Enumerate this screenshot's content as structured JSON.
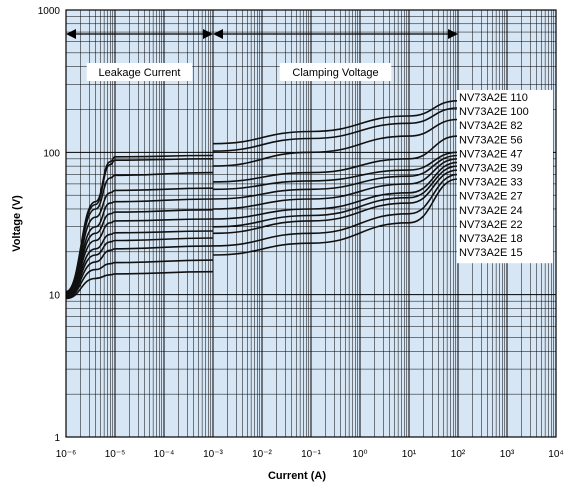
{
  "chart_data": {
    "type": "line",
    "title": "",
    "xlabel": "Current (A)",
    "ylabel": "Voltage (V)",
    "x_scale": "log",
    "y_scale": "log",
    "xlim": [
      1e-06,
      10000
    ],
    "ylim": [
      1,
      1000
    ],
    "x_tick_labels": [
      "10⁻⁶",
      "10⁻⁵",
      "10⁻⁴",
      "10⁻³",
      "10⁻²",
      "10⁻¹",
      "10⁰",
      "10¹",
      "10²",
      "10³",
      "10⁴"
    ],
    "y_tick_labels": [
      "1",
      "10",
      "100",
      "1000"
    ],
    "grid": true,
    "legend_position": "right",
    "regions": [
      {
        "label": "Leakage Current",
        "x_from": 1e-06,
        "x_to": 0.001
      },
      {
        "label": "Clamping Voltage",
        "x_from": 0.001,
        "x_to": 100
      }
    ],
    "series": [
      {
        "name": "NV73A2E 110",
        "leakage": {
          "x": [
            1e-06,
            4e-06,
            8e-06,
            1e-05,
            0.001
          ],
          "y": [
            10.5,
            45,
            86,
            93,
            95
          ]
        },
        "clamp": {
          "x": [
            0.001,
            0.1,
            10,
            100
          ],
          "y": [
            115,
            140,
            180,
            230
          ]
        }
      },
      {
        "name": "NV73A2E 100",
        "leakage": {
          "x": [
            1e-06,
            4e-06,
            8e-06,
            1e-05,
            0.001
          ],
          "y": [
            10.5,
            43,
            82,
            88,
            90
          ]
        },
        "clamp": {
          "x": [
            0.001,
            0.1,
            10,
            100
          ],
          "y": [
            102,
            125,
            160,
            205
          ]
        }
      },
      {
        "name": "NV73A2E 82",
        "leakage": {
          "x": [
            1e-06,
            4e-06,
            8e-06,
            1e-05,
            0.001
          ],
          "y": [
            10.3,
            40,
            66,
            69,
            72
          ]
        },
        "clamp": {
          "x": [
            0.001,
            0.1,
            10,
            100
          ],
          "y": [
            80,
            100,
            130,
            170
          ]
        }
      },
      {
        "name": "NV73A2E 56",
        "leakage": {
          "x": [
            1e-06,
            4e-06,
            8e-06,
            1e-05,
            0.001
          ],
          "y": [
            10.2,
            35,
            52,
            54,
            56
          ]
        },
        "clamp": {
          "x": [
            0.001,
            0.1,
            10,
            100
          ],
          "y": [
            62,
            72,
            90,
            130
          ]
        }
      },
      {
        "name": "NV73A2E 47",
        "leakage": {
          "x": [
            1e-06,
            4e-06,
            8e-06,
            1e-05,
            0.001
          ],
          "y": [
            10.1,
            30,
            44,
            45,
            47
          ]
        },
        "clamp": {
          "x": [
            0.001,
            0.1,
            10,
            100
          ],
          "y": [
            55,
            63,
            75,
            100
          ]
        }
      },
      {
        "name": "NV73A2E 39",
        "leakage": {
          "x": [
            1e-06,
            4e-06,
            8e-06,
            1e-05,
            0.001
          ],
          "y": [
            10.0,
            27,
            37,
            38,
            39.5
          ]
        },
        "clamp": {
          "x": [
            0.001,
            0.1,
            10,
            100
          ],
          "y": [
            47,
            55,
            68,
            95
          ]
        }
      },
      {
        "name": "NV73A2E 33",
        "leakage": {
          "x": [
            1e-06,
            4e-06,
            8e-06,
            1e-05,
            0.001
          ],
          "y": [
            9.9,
            24,
            32,
            33,
            34
          ]
        },
        "clamp": {
          "x": [
            0.001,
            0.1,
            10,
            100
          ],
          "y": [
            40,
            47,
            60,
            90
          ]
        }
      },
      {
        "name": "NV73A2E 27",
        "leakage": {
          "x": [
            1e-06,
            4e-06,
            8e-06,
            1e-05,
            0.001
          ],
          "y": [
            9.8,
            21,
            26.5,
            27.2,
            28
          ]
        },
        "clamp": {
          "x": [
            0.001,
            0.1,
            10,
            100
          ],
          "y": [
            34,
            40,
            52,
            85
          ]
        }
      },
      {
        "name": "NV73A2E 24",
        "leakage": {
          "x": [
            1e-06,
            4e-06,
            8e-06,
            1e-05,
            0.001
          ],
          "y": [
            9.7,
            19,
            23.5,
            24,
            25
          ]
        },
        "clamp": {
          "x": [
            0.001,
            0.1,
            10,
            100
          ],
          "y": [
            30,
            36,
            48,
            80
          ]
        }
      },
      {
        "name": "NV73A2E 22",
        "leakage": {
          "x": [
            1e-06,
            4e-06,
            8e-06,
            1e-05,
            0.001
          ],
          "y": [
            9.6,
            17,
            20.5,
            21,
            22
          ]
        },
        "clamp": {
          "x": [
            0.001,
            0.1,
            10,
            100
          ],
          "y": [
            27,
            33,
            44,
            75
          ]
        }
      },
      {
        "name": "NV73A2E 18",
        "leakage": {
          "x": [
            1e-06,
            4e-06,
            8e-06,
            1e-05,
            0.001
          ],
          "y": [
            9.5,
            15,
            16.5,
            16.8,
            17.5
          ]
        },
        "clamp": {
          "x": [
            0.001,
            0.1,
            10,
            100
          ],
          "y": [
            22,
            27,
            37,
            70
          ]
        }
      },
      {
        "name": "NV73A2E 15",
        "leakage": {
          "x": [
            1e-06,
            4e-06,
            8e-06,
            1e-05,
            0.001
          ],
          "y": [
            9.4,
            13,
            13.8,
            14,
            14.5
          ]
        },
        "clamp": {
          "x": [
            0.001,
            0.1,
            10,
            100
          ],
          "y": [
            19,
            23,
            32,
            65
          ]
        }
      }
    ]
  }
}
